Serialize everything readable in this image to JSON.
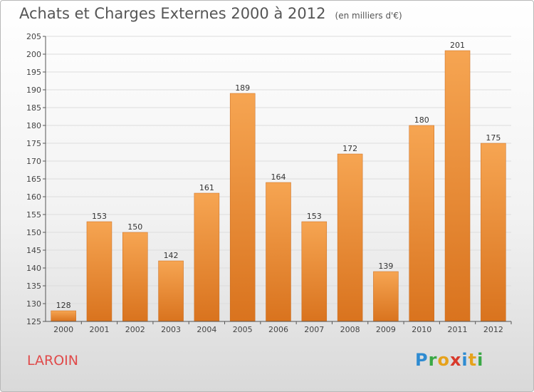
{
  "header": {
    "title": "Achats et Charges Externes 2000 à 2012",
    "subtitle": "(en milliers d'€)"
  },
  "commune": "LAROIN",
  "brand": "Proxiti",
  "chart_data": {
    "type": "bar",
    "categories": [
      "2000",
      "2001",
      "2002",
      "2003",
      "2004",
      "2005",
      "2006",
      "2007",
      "2008",
      "2009",
      "2010",
      "2011",
      "2012"
    ],
    "values": [
      128,
      153,
      150,
      142,
      161,
      189,
      164,
      153,
      172,
      139,
      180,
      201,
      175
    ],
    "title": "Achats et Charges Externes 2000 à 2012",
    "ylim": [
      125,
      205
    ],
    "ytick_step": 5,
    "grid": true,
    "data_labels": true,
    "colors": {
      "bar_top": "#f6a552",
      "bar_bottom": "#d9731e",
      "grid": "#dddddd",
      "axis": "#555555"
    }
  }
}
